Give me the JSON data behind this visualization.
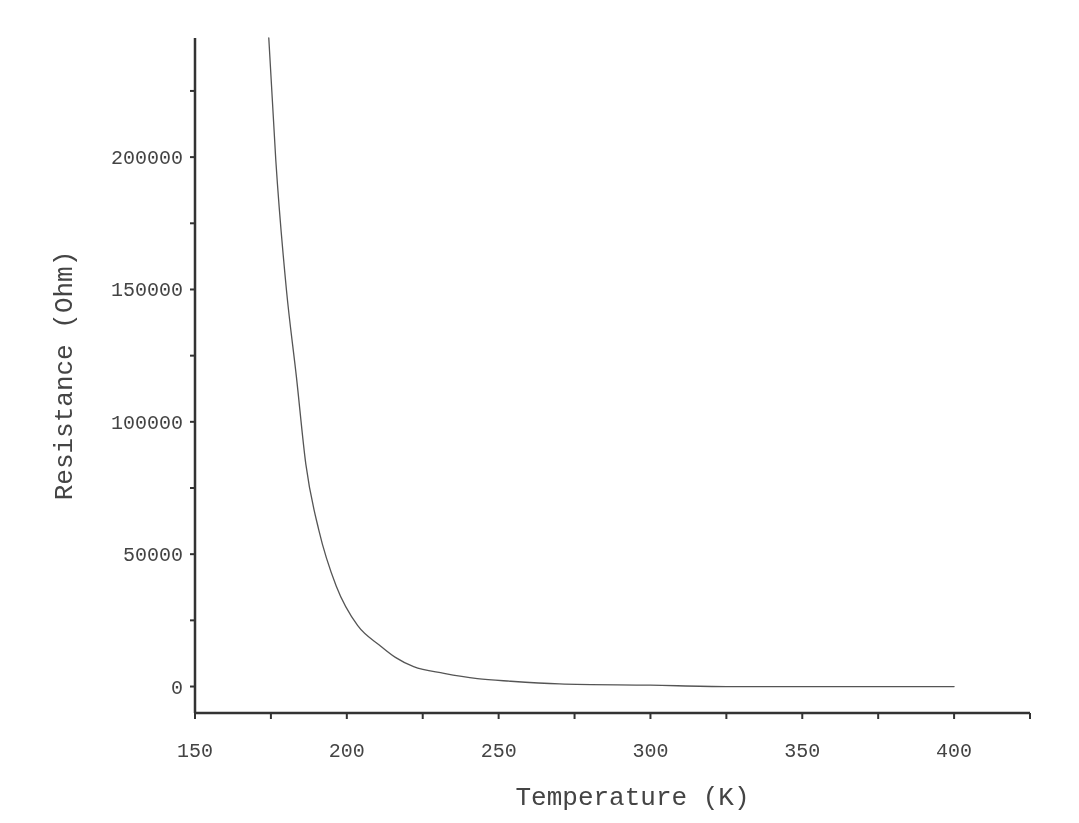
{
  "chart_data": {
    "type": "line",
    "xlabel": "Temperature (K)",
    "ylabel": "Resistance (Ohm)",
    "xlim": [
      150,
      425
    ],
    "ylim": [
      -10000,
      245000
    ],
    "xticks": [
      150,
      {
        "value": 175,
        "label": null
      },
      200,
      {
        "value": 225,
        "label": null
      },
      250,
      {
        "value": 275,
        "label": null
      },
      300,
      {
        "value": 325,
        "label": null
      },
      350,
      {
        "value": 375,
        "label": null
      },
      400,
      {
        "value": 425,
        "label": null
      }
    ],
    "yticks": [
      0,
      {
        "value": 25000,
        "label": null
      },
      50000,
      {
        "value": 75000,
        "label": null
      },
      100000,
      {
        "value": 125000,
        "label": null
      },
      150000,
      {
        "value": 175000,
        "label": null
      },
      200000,
      {
        "value": 225000,
        "label": null
      }
    ],
    "marker": "none",
    "line_style": "solid",
    "series": [
      {
        "color": "#555555",
        "x": [
          174.3,
          176.6,
          180.1,
          183.4,
          186.5,
          190.8,
          196.5,
          203.6,
          210.9,
          216,
          222,
          232,
          243,
          254,
          270,
          300,
          325,
          350,
          375,
          400
        ],
        "values": [
          245000,
          199000,
          150000,
          117000,
          84000,
          59000,
          38000,
          23000,
          15500,
          11000,
          7500,
          5000,
          3000,
          2000,
          1000,
          500,
          0,
          0,
          0,
          0
        ]
      }
    ]
  }
}
